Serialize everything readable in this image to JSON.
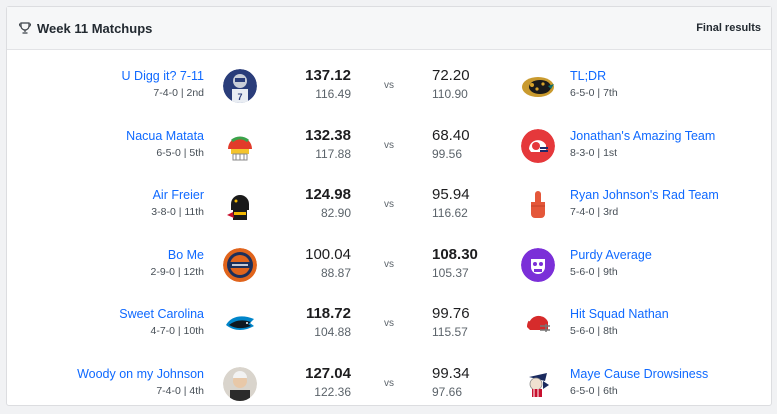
{
  "header": {
    "title": "Week 11 Matchups",
    "status": "Final results"
  },
  "matchups": [
    {
      "left": {
        "name": "U Digg it? 7-11",
        "record": "7-4-0 | 2nd",
        "score": "137.12",
        "projected": "116.49",
        "winner": true
      },
      "right": {
        "name": "TL;DR",
        "record": "6-5-0 | 7th",
        "score": "72.20",
        "projected": "110.90",
        "winner": false
      }
    },
    {
      "left": {
        "name": "Nacua Matata",
        "record": "6-5-0 | 5th",
        "score": "132.38",
        "projected": "117.88",
        "winner": true
      },
      "right": {
        "name": "Jonathan's Amazing Team",
        "record": "8-3-0 | 1st",
        "score": "68.40",
        "projected": "99.56",
        "winner": false
      }
    },
    {
      "left": {
        "name": "Air Freier",
        "record": "3-8-0 | 11th",
        "score": "124.98",
        "projected": "82.90",
        "winner": true
      },
      "right": {
        "name": "Ryan Johnson's Rad Team",
        "record": "7-4-0 | 3rd",
        "score": "95.94",
        "projected": "116.62",
        "winner": false
      }
    },
    {
      "left": {
        "name": "Bo Me",
        "record": "2-9-0 | 12th",
        "score": "100.04",
        "projected": "88.87",
        "winner": false
      },
      "right": {
        "name": "Purdy Average",
        "record": "5-6-0 | 9th",
        "score": "108.30",
        "projected": "105.37",
        "winner": true
      }
    },
    {
      "left": {
        "name": "Sweet Carolina",
        "record": "4-7-0 | 10th",
        "score": "118.72",
        "projected": "104.88",
        "winner": true
      },
      "right": {
        "name": "Hit Squad Nathan",
        "record": "5-6-0 | 8th",
        "score": "99.76",
        "projected": "115.57",
        "winner": false
      }
    },
    {
      "left": {
        "name": "Woody on my Johnson",
        "record": "7-4-0 | 4th",
        "score": "127.04",
        "projected": "122.36",
        "winner": true
      },
      "right": {
        "name": "Maye Cause Drowsiness",
        "record": "6-5-0 | 6th",
        "score": "99.34",
        "projected": "97.66",
        "winner": false
      }
    }
  ],
  "vs_label": "vs",
  "icons": {
    "trophy": "trophy-icon",
    "avatars": [
      "cowboys-player-avatar",
      "jaguars-logo-avatar",
      "helmet-avatar",
      "red-helmet-avatar",
      "steelers-player-avatar",
      "foam-finger-avatar",
      "broncos-logo-avatar",
      "purple-badge-avatar",
      "panthers-logo-avatar",
      "red-helmet-avatar",
      "person-avatar",
      "patriot-avatar"
    ]
  },
  "colors": {
    "link": "#0f69ff",
    "header_bg": "#f6f7f8",
    "text": "#1d1d1f"
  }
}
